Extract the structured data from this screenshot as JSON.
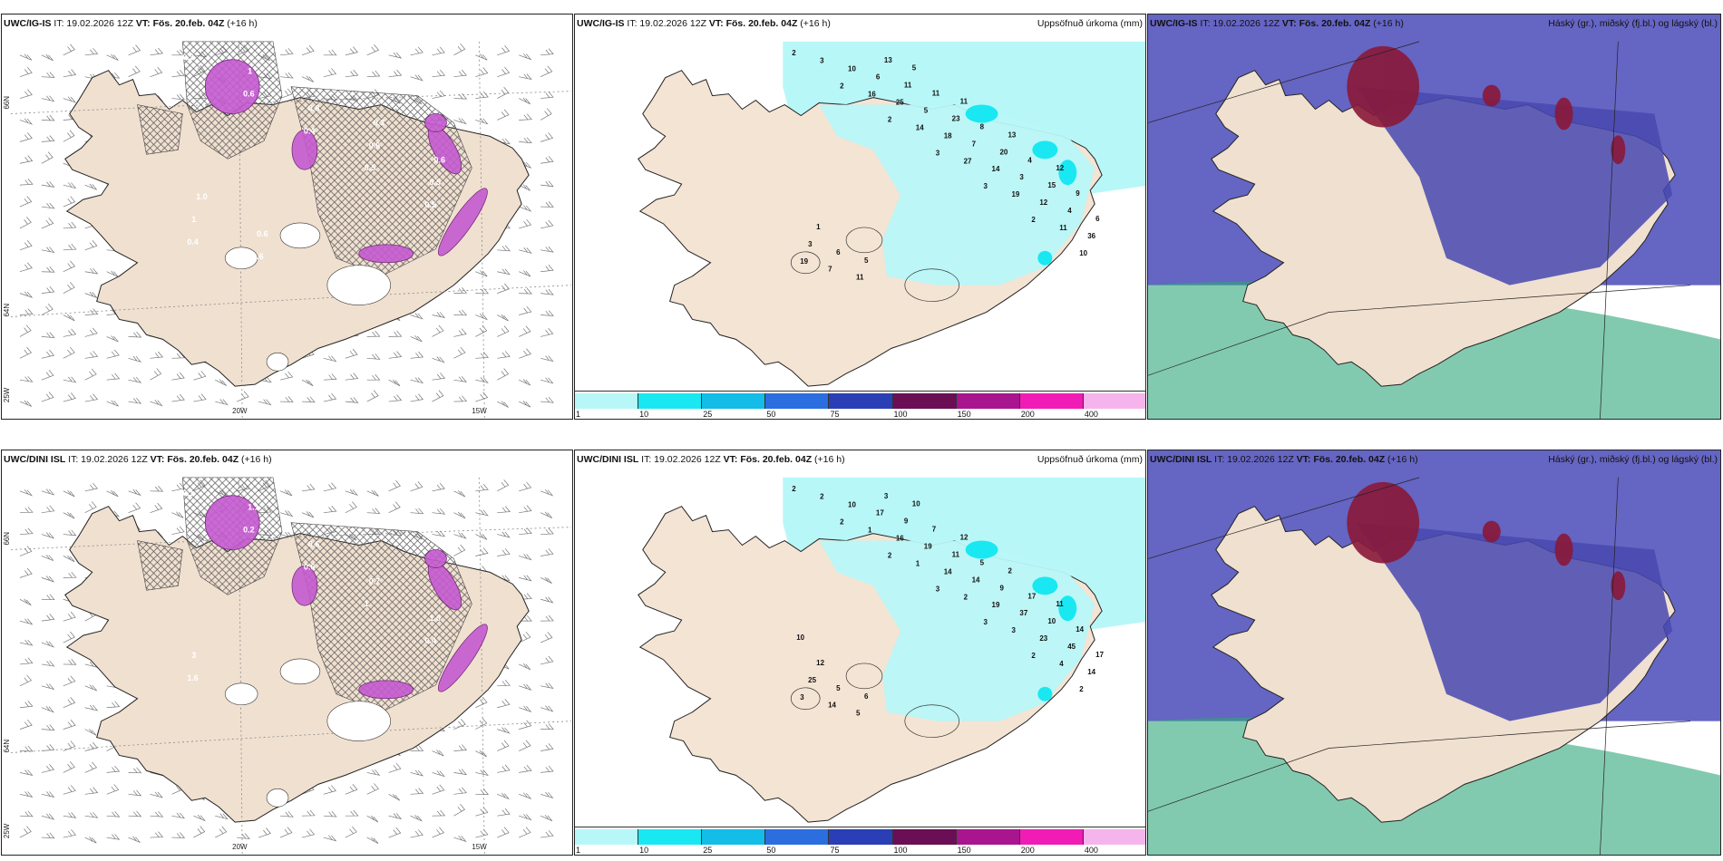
{
  "rows": [
    {
      "model": "UWC/IG-IS",
      "panels": [
        {
          "model": "UWC/IG-IS",
          "it": "IT: 19.02.2026 12Z",
          "vt": "VT: Fös. 20.feb. 04Z",
          "lead": "(+16 h)",
          "right": ""
        },
        {
          "model": "UWC/IG-IS",
          "it": "IT: 19.02.2026 12Z",
          "vt": "VT: Fös. 20.feb. 04Z",
          "lead": "(+16 h)",
          "right": "Uppsöfnuð úrkoma (mm)"
        },
        {
          "model": "UWC/IG-IS",
          "it": "IT: 19.02.2026 12Z",
          "vt": "VT: Fös. 20.feb. 04Z",
          "lead": "(+16 h)",
          "right": "Háský (gr.), miðský (fj.bl.) og lágský (bl.)"
        }
      ]
    },
    {
      "model": "UWC/DINI ISL",
      "panels": [
        {
          "model": "UWC/DINI ISL",
          "it": "IT: 19.02.2026 12Z",
          "vt": "VT: Fös. 20.feb. 04Z",
          "lead": "(+16 h)",
          "right": ""
        },
        {
          "model": "UWC/DINI ISL",
          "it": "IT: 19.02.2026 12Z",
          "vt": "VT: Fös. 20.feb. 04Z",
          "lead": "(+16 h)",
          "right": "Uppsöfnuð úrkoma (mm)"
        },
        {
          "model": "UWC/DINI ISL",
          "it": "IT: 19.02.2026 12Z",
          "vt": "VT: Fös. 20.feb. 04Z",
          "lead": "(+16 h)",
          "right": "Háský (gr.), miðský (fj.bl.) og lágský (bl.)"
        }
      ]
    }
  ],
  "axis": {
    "lon_a": "20W",
    "lon_b": "15W",
    "lat_a": "66N",
    "lat_b": "64N",
    "lon_c": "25W"
  },
  "colorbar": {
    "labels": [
      "1",
      "10",
      "25",
      "50",
      "75",
      "100",
      "150",
      "200",
      "400"
    ],
    "colors": [
      "#b8f7f8",
      "#19e8f2",
      "#13bde8",
      "#2a6ee0",
      "#2a3fb5",
      "#6a0f55",
      "#a8158e",
      "#f01cb5",
      "#f5b5ec"
    ]
  },
  "precip_labels_top": [
    "2",
    "2",
    "2",
    "3",
    "3",
    "2",
    "10",
    "3",
    "16",
    "14",
    "27",
    "19",
    "11",
    "19",
    "10",
    "25",
    "18",
    "14",
    "12",
    "36",
    "7",
    "6",
    "5",
    "7",
    "3",
    "4",
    "3",
    "11",
    "11",
    "23",
    "20",
    "15",
    "6",
    "6",
    "13",
    "11",
    "8",
    "4",
    "9",
    "1",
    "5",
    "5",
    "11",
    "13",
    "12"
  ],
  "precip_labels_bottom": [
    "2",
    "2",
    "2",
    "3",
    "3",
    "2",
    "2",
    "2",
    "1",
    "1",
    "2",
    "3",
    "4",
    "3",
    "10",
    "16",
    "14",
    "19",
    "23",
    "14",
    "14",
    "17",
    "19",
    "14",
    "37",
    "45",
    "25",
    "5",
    "9",
    "11",
    "9",
    "10",
    "17",
    "5",
    "3",
    "7",
    "5",
    "17",
    "14",
    "12",
    "6",
    "10",
    "12",
    "2",
    "11",
    "10"
  ],
  "snow_labels_top": [
    "0.3",
    "0.6",
    "0.4",
    "0.5",
    "0.5",
    "0.4",
    "1",
    "0.8",
    "0.6",
    "0.5",
    "1",
    "0.6",
    "0.5",
    "0.3",
    "0.6",
    "1.0",
    "0.6",
    "0.5"
  ],
  "snow_labels_bottom": [
    "0.1",
    "0.2",
    "0.6",
    "1",
    "0.4",
    "1.6",
    "1.1",
    "0.6",
    "0.7",
    "1.0",
    "3",
    "3",
    "6"
  ]
}
